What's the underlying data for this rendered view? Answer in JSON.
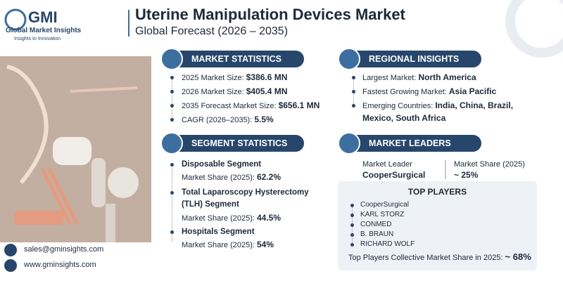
{
  "logo": {
    "name": "GMI",
    "company": "Global Market Insights",
    "tagline": "Insights to Innovation"
  },
  "header": {
    "title": "Uterine Manipulation Devices Market",
    "subtitle": "Global Forecast (2026 – 2035)"
  },
  "market_statistics": {
    "title": "MARKET STATISTICS",
    "items": [
      {
        "label": "2025 Market Size:",
        "value": "$386.6 MN"
      },
      {
        "label": "2026 Market Size:",
        "value": "$405.4 MN"
      },
      {
        "label": "2035 Forecast Market Size:",
        "value": "$656.1 MN"
      },
      {
        "label": "CAGR (2026–2035):",
        "value": "5.5%"
      }
    ]
  },
  "regional_insights": {
    "title": "REGIONAL INSIGHTS",
    "items": [
      {
        "label": "Largest Market:",
        "value": "North America"
      },
      {
        "label": "Fastest Growing Market:",
        "value": "Asia Pacific"
      },
      {
        "label": "Emerging Countries:",
        "value": "India, China, Brazil, Mexico, South Africa"
      }
    ]
  },
  "segment_statistics": {
    "title": "SEGMENT STATISTICS",
    "items": [
      {
        "name": "Disposable Segment",
        "share_label": "Market Share (2025):",
        "share": "62.2%"
      },
      {
        "name": "Total Laparoscopy Hysterectomy (TLH) Segment",
        "share_label": "Market Share (2025):",
        "share": "44.5%"
      },
      {
        "name": "Hospitals Segment",
        "share_label": "Market Share (2025):",
        "share": "54%"
      }
    ]
  },
  "market_leaders": {
    "title": "MARKET LEADERS",
    "leader_label": "Market Leader",
    "leader": "CooperSurgical",
    "share_label": "Market Share (2025)",
    "share": "~ 25%"
  },
  "top_players": {
    "title": "TOP PLAYERS",
    "players": [
      "CooperSurgical",
      "KARL STORZ",
      "CONMED",
      "B. BRAUN",
      "RICHARD WOLF"
    ],
    "collective_label": "Top Players Collective Market Share in 2025:",
    "collective_value": "~ 68%"
  },
  "contact": {
    "email": "sales@gminsights.com",
    "website": "www.gminsights.com"
  }
}
